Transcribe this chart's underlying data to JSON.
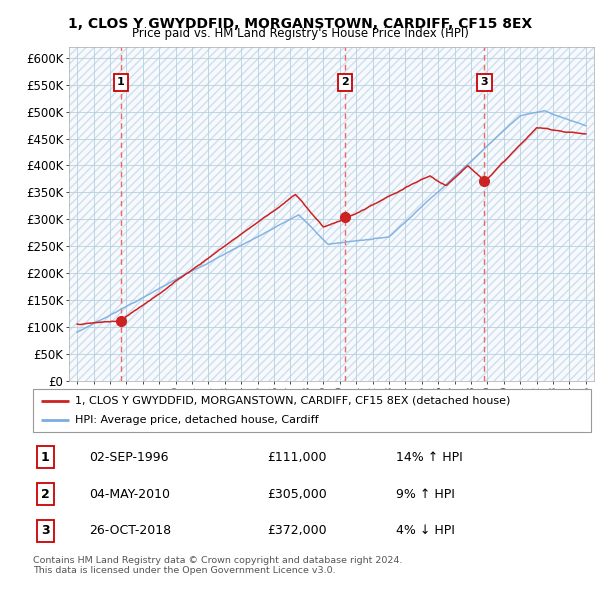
{
  "title1": "1, CLOS Y GWYDDFID, MORGANSTOWN, CARDIFF, CF15 8EX",
  "title2": "Price paid vs. HM Land Registry's House Price Index (HPI)",
  "legend_line1": "1, CLOS Y GWYDDFID, MORGANSTOWN, CARDIFF, CF15 8EX (detached house)",
  "legend_line2": "HPI: Average price, detached house, Cardiff",
  "table_rows": [
    {
      "num": "1",
      "date": "02-SEP-1996",
      "price": "£111,000",
      "pct": "14% ↑ HPI"
    },
    {
      "num": "2",
      "date": "04-MAY-2010",
      "price": "£305,000",
      "pct": "9% ↑ HPI"
    },
    {
      "num": "3",
      "date": "26-OCT-2018",
      "price": "£372,000",
      "pct": "4% ↓ HPI"
    }
  ],
  "footer": "Contains HM Land Registry data © Crown copyright and database right 2024.\nThis data is licensed under the Open Government Licence v3.0.",
  "sale_dates": [
    1996.67,
    2010.34,
    2018.82
  ],
  "sale_prices": [
    111000,
    305000,
    372000
  ],
  "sale_labels": [
    "1",
    "2",
    "3"
  ],
  "hpi_color": "#7aade0",
  "price_color": "#cc2222",
  "dashed_color": "#ee6666",
  "bg_color": "#e8f0f8",
  "ylim": [
    0,
    620000
  ],
  "xlim": [
    1993.5,
    2025.5
  ],
  "yticks": [
    0,
    50000,
    100000,
    150000,
    200000,
    250000,
    300000,
    350000,
    400000,
    450000,
    500000,
    550000,
    600000
  ],
  "ytick_labels": [
    "£0",
    "£50K",
    "£100K",
    "£150K",
    "£200K",
    "£250K",
    "£300K",
    "£350K",
    "£400K",
    "£450K",
    "£500K",
    "£550K",
    "£600K"
  ],
  "xticks": [
    1994,
    1995,
    1996,
    1997,
    1998,
    1999,
    2000,
    2001,
    2002,
    2003,
    2004,
    2005,
    2006,
    2007,
    2008,
    2009,
    2010,
    2011,
    2012,
    2013,
    2014,
    2015,
    2016,
    2017,
    2018,
    2019,
    2020,
    2021,
    2022,
    2023,
    2024,
    2025
  ]
}
